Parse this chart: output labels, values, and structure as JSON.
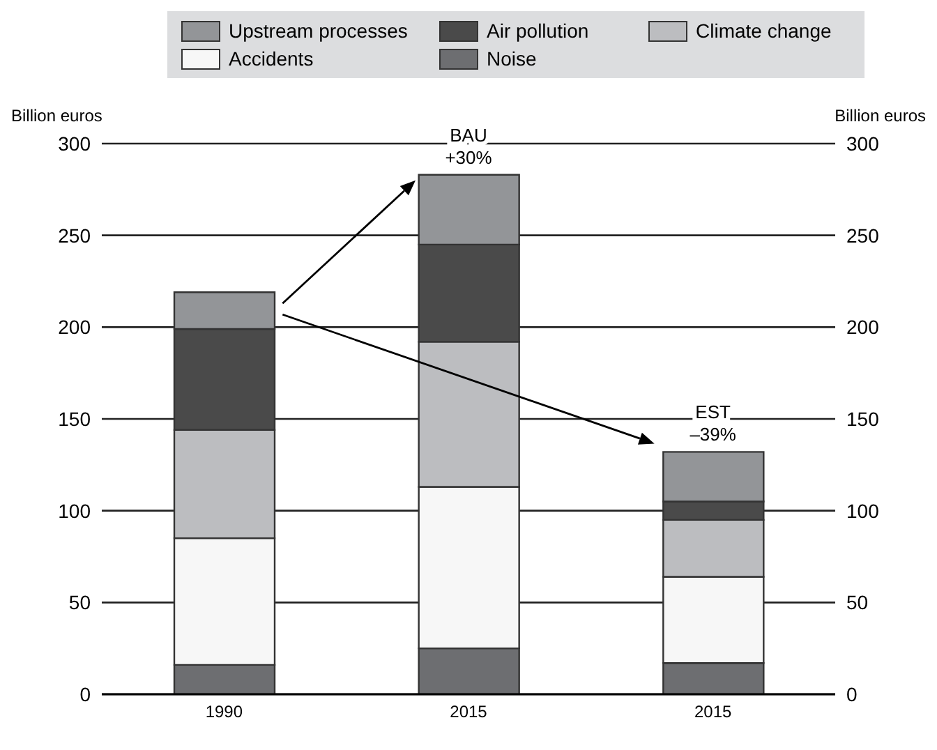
{
  "chart_data": {
    "type": "bar",
    "stacked": true,
    "ylabel": "Billion euros",
    "y2label": "Billion euros",
    "categories": [
      "1990",
      "2015",
      "2015"
    ],
    "series": [
      {
        "name": "Noise",
        "color": "#6d6e71",
        "values": [
          16,
          25,
          17
        ]
      },
      {
        "name": "Accidents",
        "color": "#f7f7f7",
        "values": [
          69,
          88,
          47
        ]
      },
      {
        "name": "Climate change",
        "color": "#bcbdc0",
        "values": [
          59,
          79,
          31
        ]
      },
      {
        "name": "Air pollution",
        "color": "#4a4a4a",
        "values": [
          55,
          53,
          10
        ]
      },
      {
        "name": "Upstream processes",
        "color": "#939598",
        "values": [
          20,
          38,
          27
        ]
      }
    ],
    "ylim": [
      0,
      300
    ],
    "yticks": [
      0,
      50,
      100,
      150,
      200,
      250,
      300
    ],
    "y2lim": [
      0,
      300
    ],
    "y2ticks": [
      0,
      50,
      100,
      150,
      200,
      250,
      300
    ],
    "grid": "y",
    "legend": "top",
    "annotations": [
      "BAU\n+30%",
      "EST\n–39%"
    ]
  }
}
